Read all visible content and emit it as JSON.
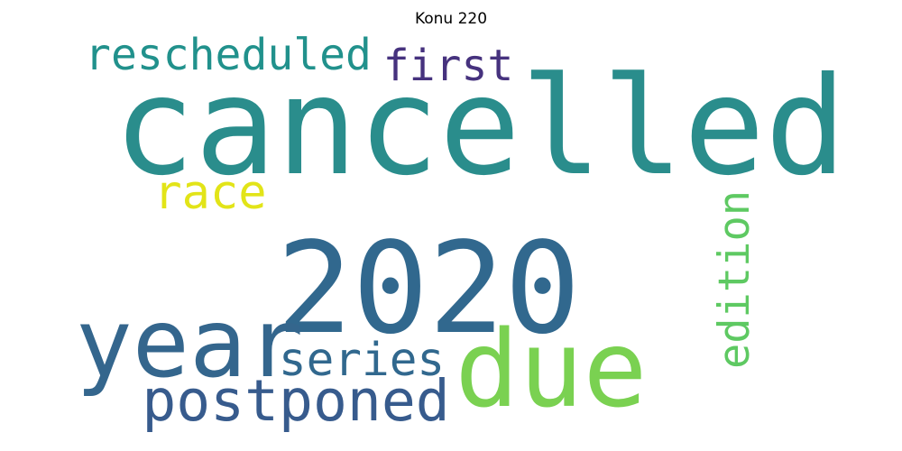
{
  "title": "Konu 220",
  "words": [
    {
      "text": "cancelled",
      "color": "#2a8d8c"
    },
    {
      "text": "2020",
      "color": "#31688e"
    },
    {
      "text": "year",
      "color": "#34668d"
    },
    {
      "text": "due",
      "color": "#7ad151"
    },
    {
      "text": "postponed",
      "color": "#375b8d"
    },
    {
      "text": "rescheduled",
      "color": "#21918c"
    },
    {
      "text": "first",
      "color": "#46327e"
    },
    {
      "text": "race",
      "color": "#e2e418"
    },
    {
      "text": "series",
      "color": "#31688e"
    },
    {
      "text": "edition",
      "color": "#5ec962"
    }
  ]
}
